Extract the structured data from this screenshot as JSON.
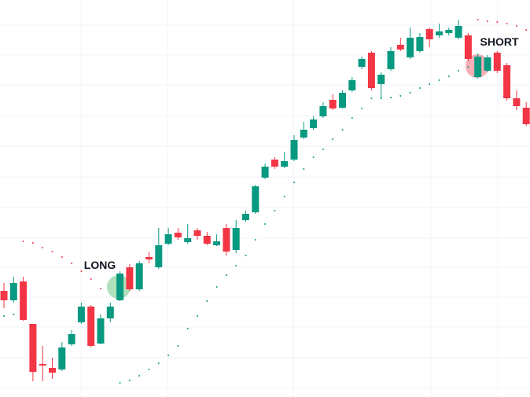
{
  "chart_data": {
    "type": "candlestick",
    "annotations": [
      "LONG",
      "SHORT"
    ],
    "up_color": "#089981",
    "down_color": "#f23645",
    "candles": [
      [
        135,
        145,
        113,
        123
      ],
      [
        123,
        153,
        120,
        145
      ],
      [
        147,
        153,
        97,
        98
      ],
      [
        93,
        93,
        20,
        32
      ],
      [
        42,
        65,
        20,
        40
      ],
      [
        37,
        50,
        23,
        31
      ],
      [
        35,
        70,
        33,
        63
      ],
      [
        67,
        85,
        65,
        80
      ],
      [
        95,
        120,
        93,
        115
      ],
      [
        115,
        117,
        63,
        65
      ],
      [
        68,
        105,
        67,
        100
      ],
      [
        100,
        120,
        95,
        115
      ],
      [
        123,
        160,
        122,
        157
      ],
      [
        165,
        169,
        135,
        137
      ],
      [
        137,
        173,
        135,
        170
      ],
      [
        178,
        185,
        170,
        175
      ],
      [
        165,
        215,
        163,
        193
      ],
      [
        195,
        215,
        193,
        207
      ],
      [
        209,
        215,
        200,
        203
      ],
      [
        197,
        220,
        195,
        202
      ],
      [
        212,
        215,
        200,
        205
      ],
      [
        205,
        210,
        193,
        195
      ],
      [
        193,
        207,
        192,
        198
      ],
      [
        215,
        220,
        180,
        185
      ],
      [
        187,
        225,
        183,
        215
      ],
      [
        225,
        237,
        223,
        233
      ],
      [
        235,
        270,
        233,
        268
      ],
      [
        279,
        297,
        277,
        293
      ],
      [
        302,
        305,
        290,
        293
      ],
      [
        293,
        312,
        291,
        300
      ],
      [
        302,
        333,
        300,
        327
      ],
      [
        330,
        350,
        328,
        340
      ],
      [
        342,
        357,
        340,
        353
      ],
      [
        357,
        375,
        355,
        370
      ],
      [
        378,
        385,
        365,
        367
      ],
      [
        368,
        390,
        367,
        387
      ],
      [
        390,
        407,
        388,
        403
      ],
      [
        420,
        433,
        417,
        430
      ],
      [
        438,
        440,
        390,
        393
      ],
      [
        398,
        413,
        380,
        410
      ],
      [
        417,
        445,
        415,
        440
      ],
      [
        448,
        457,
        440,
        442
      ],
      [
        432,
        470,
        430,
        457
      ],
      [
        440,
        463,
        438,
        458
      ],
      [
        468,
        470,
        445,
        455
      ],
      [
        460,
        475,
        457,
        465
      ],
      [
        463,
        470,
        460,
        467
      ],
      [
        457,
        480,
        455,
        472
      ],
      [
        460,
        463,
        427,
        430
      ],
      [
        407,
        437,
        405,
        433
      ],
      [
        415,
        435,
        413,
        432
      ],
      [
        438,
        440,
        412,
        415
      ],
      [
        422,
        425,
        377,
        380
      ],
      [
        380,
        390,
        365,
        370
      ],
      [
        368,
        375,
        345,
        347
      ]
    ],
    "sar": [
      {
        "color": "#089981",
        "values": [
          103,
          105,
          null,
          null,
          null,
          null,
          null,
          null,
          null,
          null,
          null,
          null,
          18,
          21,
          27,
          35,
          43,
          53,
          65,
          87,
          103,
          122,
          140,
          155,
          167,
          180,
          200,
          220,
          237,
          255,
          273,
          290,
          305,
          315,
          328,
          340,
          355,
          367,
          380,
          380,
          381,
          383,
          387,
          393,
          398,
          403,
          408,
          415,
          420,
          null,
          null,
          null,
          null,
          null,
          null
        ]
      },
      {
        "color": "#f23645",
        "values": [
          null,
          null,
          198,
          196,
          190,
          185,
          178,
          170,
          160,
          150,
          138,
          null,
          null,
          null,
          null,
          null,
          null,
          null,
          null,
          null,
          null,
          null,
          null,
          null,
          null,
          null,
          null,
          null,
          null,
          null,
          null,
          null,
          null,
          null,
          null,
          null,
          null,
          null,
          null,
          null,
          null,
          null,
          null,
          null,
          null,
          null,
          null,
          null,
          null,
          480,
          478,
          477,
          475,
          472,
          467
        ]
      }
    ]
  }
}
